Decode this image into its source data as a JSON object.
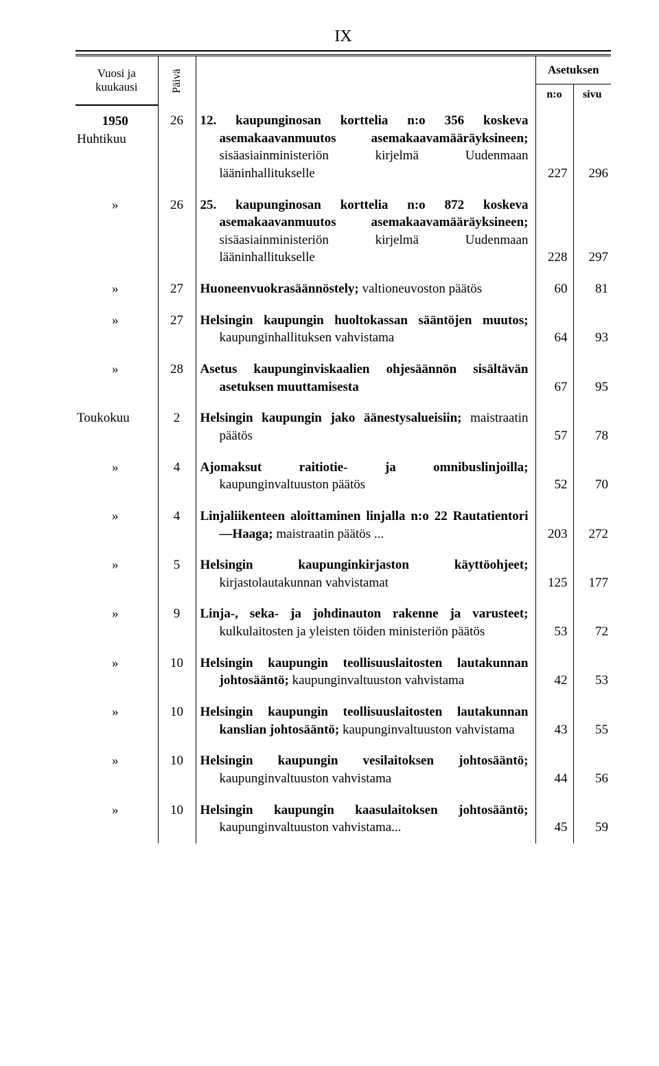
{
  "page_header": "IX",
  "headers": {
    "vuosi_kuukausi": "Vuosi ja kuukausi",
    "paiva": "Päivä",
    "asetuksen": "Asetuksen",
    "no": "n:o",
    "sivu": "sivu"
  },
  "year": "1950",
  "rows": [
    {
      "month": "Huhtikuu",
      "day": "26",
      "text_bold": "12. kaupunginosan korttelia n:o 356 koskeva asemakaavanmuutos asemakaavamääräyksineen;",
      "text_rest": " sisäasiainministeriön kirjelmä Uudenmaan lääninhallitukselle",
      "no": "227",
      "sivu": "296"
    },
    {
      "month": "»",
      "day": "26",
      "text_bold": "25. kaupunginosan korttelia n:o 872 koskeva asemakaavanmuutos asemakaavamääräyksineen;",
      "text_rest": " sisäasiainministeriön kirjelmä Uudenmaan lääninhallitukselle",
      "no": "228",
      "sivu": "297"
    },
    {
      "month": "»",
      "day": "27",
      "text_bold": "Huoneenvuokrasäännöstely;",
      "text_rest": " valtioneuvoston päätös",
      "no": "60",
      "sivu": "81"
    },
    {
      "month": "»",
      "day": "27",
      "text_bold": "Helsingin kaupungin huoltokassan sääntöjen muutos;",
      "text_rest": " kaupunginhallituksen vahvistama",
      "no": "64",
      "sivu": "93"
    },
    {
      "month": "»",
      "day": "28",
      "text_bold": "Asetus kaupunginviskaalien ohjesäännön sisältävän asetuksen muuttamisesta",
      "text_rest": "",
      "no": "67",
      "sivu": "95"
    },
    {
      "month": "Toukokuu",
      "day": "2",
      "text_bold": "Helsingin kaupungin jako äänestysalueisiin;",
      "text_rest": " maistraatin päätös",
      "no": "57",
      "sivu": "78"
    },
    {
      "month": "»",
      "day": "4",
      "text_bold": "Ajomaksut raitiotie- ja omnibuslinjoilla;",
      "text_rest": " kaupunginvaltuuston päätös",
      "no": "52",
      "sivu": "70"
    },
    {
      "month": "»",
      "day": "4",
      "text_bold": "Linjaliikenteen aloittaminen linjalla n:o 22 Rautatientori—Haaga;",
      "text_rest": " maistraatin päätös ...",
      "no": "203",
      "sivu": "272"
    },
    {
      "month": "»",
      "day": "5",
      "text_bold": "Helsingin kaupunginkirjaston käyttöohjeet;",
      "text_rest": " kirjastolautakunnan vahvistamat",
      "no": "125",
      "sivu": "177"
    },
    {
      "month": "»",
      "day": "9",
      "text_bold": "Linja-, seka- ja johdinauton rakenne ja varusteet;",
      "text_rest": " kulkulaitosten ja yleisten töiden ministeriön päätös",
      "no": "53",
      "sivu": "72"
    },
    {
      "month": "»",
      "day": "10",
      "text_bold": "Helsingin kaupungin teollisuuslaitosten lautakunnan johtosääntö;",
      "text_rest": " kaupunginvaltuuston vahvistama",
      "no": "42",
      "sivu": "53"
    },
    {
      "month": "»",
      "day": "10",
      "text_bold": "Helsingin kaupungin teollisuuslaitosten lautakunnan kanslian johtosääntö;",
      "text_rest": " kaupunginvaltuuston vahvistama",
      "no": "43",
      "sivu": "55"
    },
    {
      "month": "»",
      "day": "10",
      "text_bold": "Helsingin kaupungin vesilaitoksen johtosääntö;",
      "text_rest": " kaupunginvaltuuston vahvistama",
      "no": "44",
      "sivu": "56"
    },
    {
      "month": "»",
      "day": "10",
      "text_bold": "Helsingin kaupungin kaasulaitoksen johtosääntö;",
      "text_rest": " kaupunginvaltuuston vahvistama...",
      "no": "45",
      "sivu": "59"
    }
  ]
}
